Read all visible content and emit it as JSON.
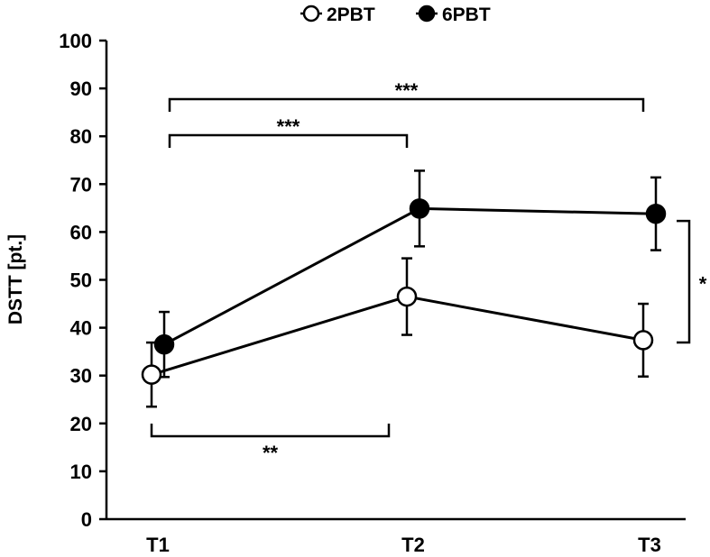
{
  "chart_data": {
    "type": "line",
    "ylabel": "DSTT [pt.]",
    "xlabel": "",
    "categories": [
      "T1",
      "T2",
      "T3"
    ],
    "ylim": [
      0,
      100
    ],
    "yticks": [
      0,
      10,
      20,
      30,
      40,
      50,
      60,
      70,
      80,
      90,
      100
    ],
    "legend_position": "top-center",
    "series": [
      {
        "name": "2PBT",
        "marker": "open-circle",
        "color": "#000000",
        "values": [
          30.2,
          46.5,
          37.4
        ],
        "error": [
          6.7,
          8.0,
          7.6
        ]
      },
      {
        "name": "6PBT",
        "marker": "filled-circle",
        "color": "#000000",
        "values": [
          36.5,
          64.9,
          63.8
        ],
        "error": [
          6.8,
          7.9,
          7.6
        ]
      }
    ],
    "significance": [
      {
        "label": "***",
        "from": "T1",
        "to": "T3",
        "position": "top"
      },
      {
        "label": "***",
        "from": "T1",
        "to": "T2",
        "position": "top"
      },
      {
        "label": "**",
        "from": "T1",
        "to": "T2",
        "position": "bottom"
      },
      {
        "label": "*",
        "between": "series",
        "at": "T3",
        "position": "right"
      }
    ]
  }
}
